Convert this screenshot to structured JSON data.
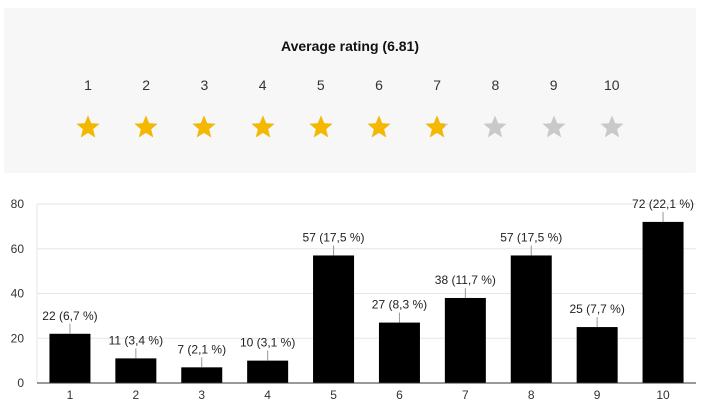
{
  "rating": {
    "title": "Average rating (6.81)",
    "average": 6.81,
    "max": 10,
    "scale_labels": [
      "1",
      "2",
      "3",
      "4",
      "5",
      "6",
      "7",
      "8",
      "9",
      "10"
    ],
    "filled_color": "#f5b800",
    "empty_color": "#c9c9c9"
  },
  "chart_data": {
    "type": "bar",
    "categories": [
      "1",
      "2",
      "3",
      "4",
      "5",
      "6",
      "7",
      "8",
      "9",
      "10"
    ],
    "values": [
      22,
      11,
      7,
      10,
      57,
      27,
      38,
      57,
      25,
      72
    ],
    "data_labels": [
      "22 (6,7 %)",
      "11 (3,4 %)",
      "7 (2,1 %)",
      "10 (3,1 %)",
      "57 (17,5 %)",
      "27 (8,3 %)",
      "38 (11,7 %)",
      "57 (17,5 %)",
      "25 (7,7 %)",
      "72 (22,1 %)"
    ],
    "ylim": [
      0,
      80
    ],
    "yticks": [
      0,
      20,
      40,
      60,
      80
    ],
    "grid": true,
    "bar_color": "#000000"
  }
}
